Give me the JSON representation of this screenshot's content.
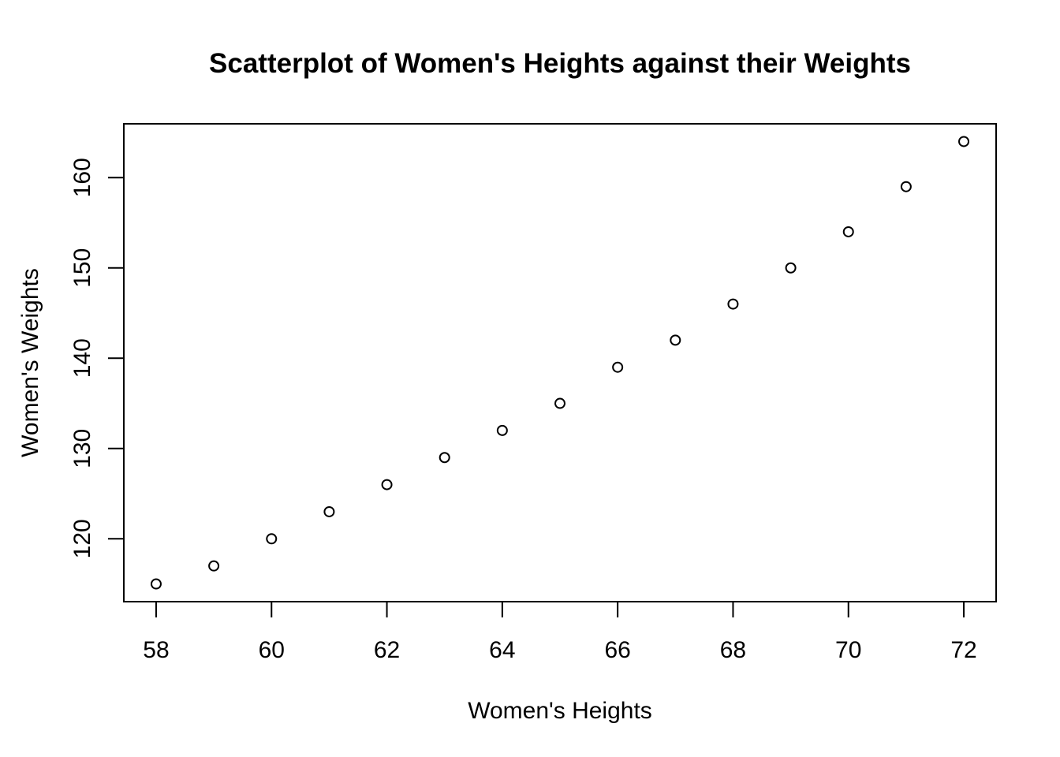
{
  "chart_data": {
    "type": "scatter",
    "title": "Scatterplot of Women's Heights against their Weights",
    "xlabel": "Women's Heights",
    "ylabel": "Women's Weights",
    "x": [
      58,
      59,
      60,
      61,
      62,
      63,
      64,
      65,
      66,
      67,
      68,
      69,
      70,
      71,
      72
    ],
    "y": [
      115,
      117,
      120,
      123,
      126,
      129,
      132,
      135,
      139,
      142,
      146,
      150,
      154,
      159,
      164
    ],
    "xlim": [
      57.44,
      72.56
    ],
    "ylim": [
      113.04,
      165.96
    ],
    "xticks": [
      58,
      60,
      62,
      64,
      66,
      68,
      70,
      72
    ],
    "yticks": [
      120,
      130,
      140,
      150,
      160
    ],
    "grid": false,
    "marker": "open-circle",
    "colors": {
      "points": "#000000",
      "axes": "#000000",
      "background": "#ffffff"
    }
  }
}
